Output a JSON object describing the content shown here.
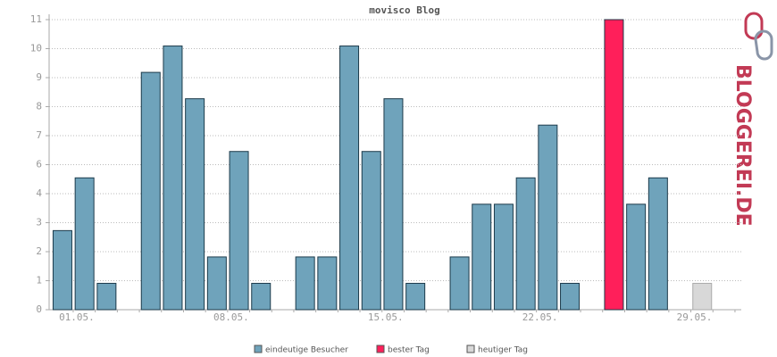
{
  "chart_data": {
    "type": "bar",
    "title": "movisco Blog",
    "categories": [
      "01.05.",
      null,
      null,
      null,
      null,
      null,
      null,
      "08.05.",
      null,
      null,
      null,
      null,
      null,
      null,
      "15.05.",
      null,
      null,
      null,
      null,
      null,
      null,
      "22.05.",
      null,
      null,
      null,
      null,
      null,
      null,
      "29.05.",
      null,
      null
    ],
    "series": [
      {
        "name": "eindeutige Besucher",
        "color": "#6fa3bb",
        "values": [
          3,
          5,
          1,
          0,
          9,
          10,
          8,
          2,
          6,
          1,
          0,
          2,
          2,
          10,
          6,
          8,
          1,
          0,
          2,
          4,
          4,
          5,
          7,
          1,
          0,
          null,
          4,
          5,
          0,
          null,
          0
        ]
      },
      {
        "name": "bester Tag",
        "color": "#ff1f5a",
        "values": [
          null,
          null,
          null,
          null,
          null,
          null,
          null,
          null,
          null,
          null,
          null,
          null,
          null,
          null,
          null,
          null,
          null,
          null,
          null,
          null,
          null,
          null,
          null,
          null,
          null,
          11,
          null,
          null,
          null,
          null,
          null
        ]
      },
      {
        "name": "heutiger Tag",
        "color": "#d8d8d8",
        "values": [
          null,
          null,
          null,
          null,
          null,
          null,
          null,
          null,
          null,
          null,
          null,
          null,
          null,
          null,
          null,
          null,
          null,
          null,
          null,
          null,
          null,
          null,
          null,
          null,
          null,
          null,
          null,
          null,
          null,
          1,
          null
        ]
      }
    ],
    "ylim": [
      0,
      11
    ],
    "yticks": [
      0,
      {
        "value": 1.1,
        "label": "1"
      },
      {
        "value": 2.2,
        "label": "2"
      },
      {
        "value": 3.3,
        "label": "3"
      },
      {
        "value": 4.4,
        "label": "4"
      },
      {
        "value": 5.5,
        "label": "6"
      },
      {
        "value": 6.6,
        "label": "7"
      },
      {
        "value": 7.7,
        "label": "8"
      },
      {
        "value": 8.8,
        "label": "9"
      },
      {
        "value": 9.9,
        "label": "10"
      },
      11
    ],
    "grid": true,
    "logo": "BLOGGEREI.DE"
  }
}
